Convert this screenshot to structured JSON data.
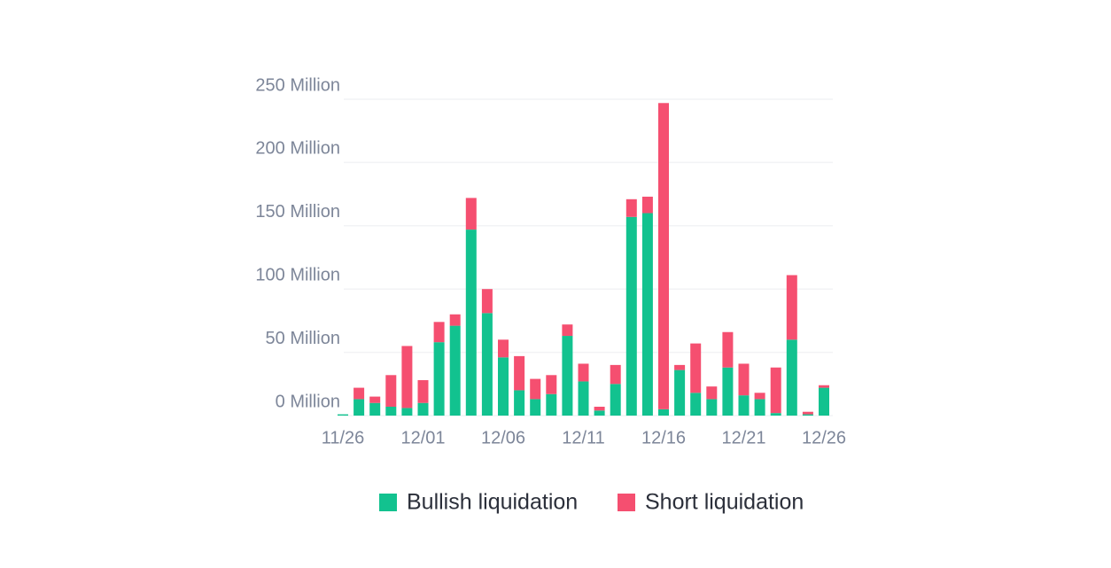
{
  "chart_data": {
    "type": "stacked_bar",
    "categories": [
      "11/26",
      null,
      null,
      null,
      null,
      "12/01",
      null,
      null,
      null,
      null,
      "12/06",
      null,
      null,
      null,
      null,
      "12/11",
      null,
      null,
      null,
      null,
      "12/16",
      null,
      null,
      null,
      null,
      "12/21",
      null,
      null,
      null,
      null,
      "12/26"
    ],
    "series": [
      {
        "name": "Bullish liquidation",
        "color": "#12c28f",
        "values": [
          1,
          13,
          10,
          7,
          6,
          10,
          58,
          71,
          147,
          81,
          46,
          20,
          13,
          17,
          63,
          27,
          4,
          25,
          157,
          160,
          5,
          36,
          18,
          13,
          38,
          16,
          13,
          2,
          60,
          1,
          22
        ]
      },
      {
        "name": "Short liquidation",
        "color": "#f54f70",
        "values": [
          0,
          9,
          5,
          25,
          49,
          18,
          16,
          9,
          25,
          19,
          14,
          27,
          16,
          15,
          9,
          14,
          3,
          15,
          14,
          13,
          242,
          4,
          39,
          10,
          28,
          25,
          5,
          36,
          51,
          2,
          2
        ]
      }
    ],
    "ylim": [
      0,
      250
    ],
    "yticks": [
      {
        "value": 0,
        "label": "0 Million"
      },
      {
        "value": 50,
        "label": "50 Million"
      },
      {
        "value": 100,
        "label": "100 Million"
      },
      {
        "value": 150,
        "label": "150 Million"
      },
      {
        "value": 200,
        "label": "200 Million"
      },
      {
        "value": 250,
        "label": "250 Million"
      }
    ],
    "grid": true
  }
}
